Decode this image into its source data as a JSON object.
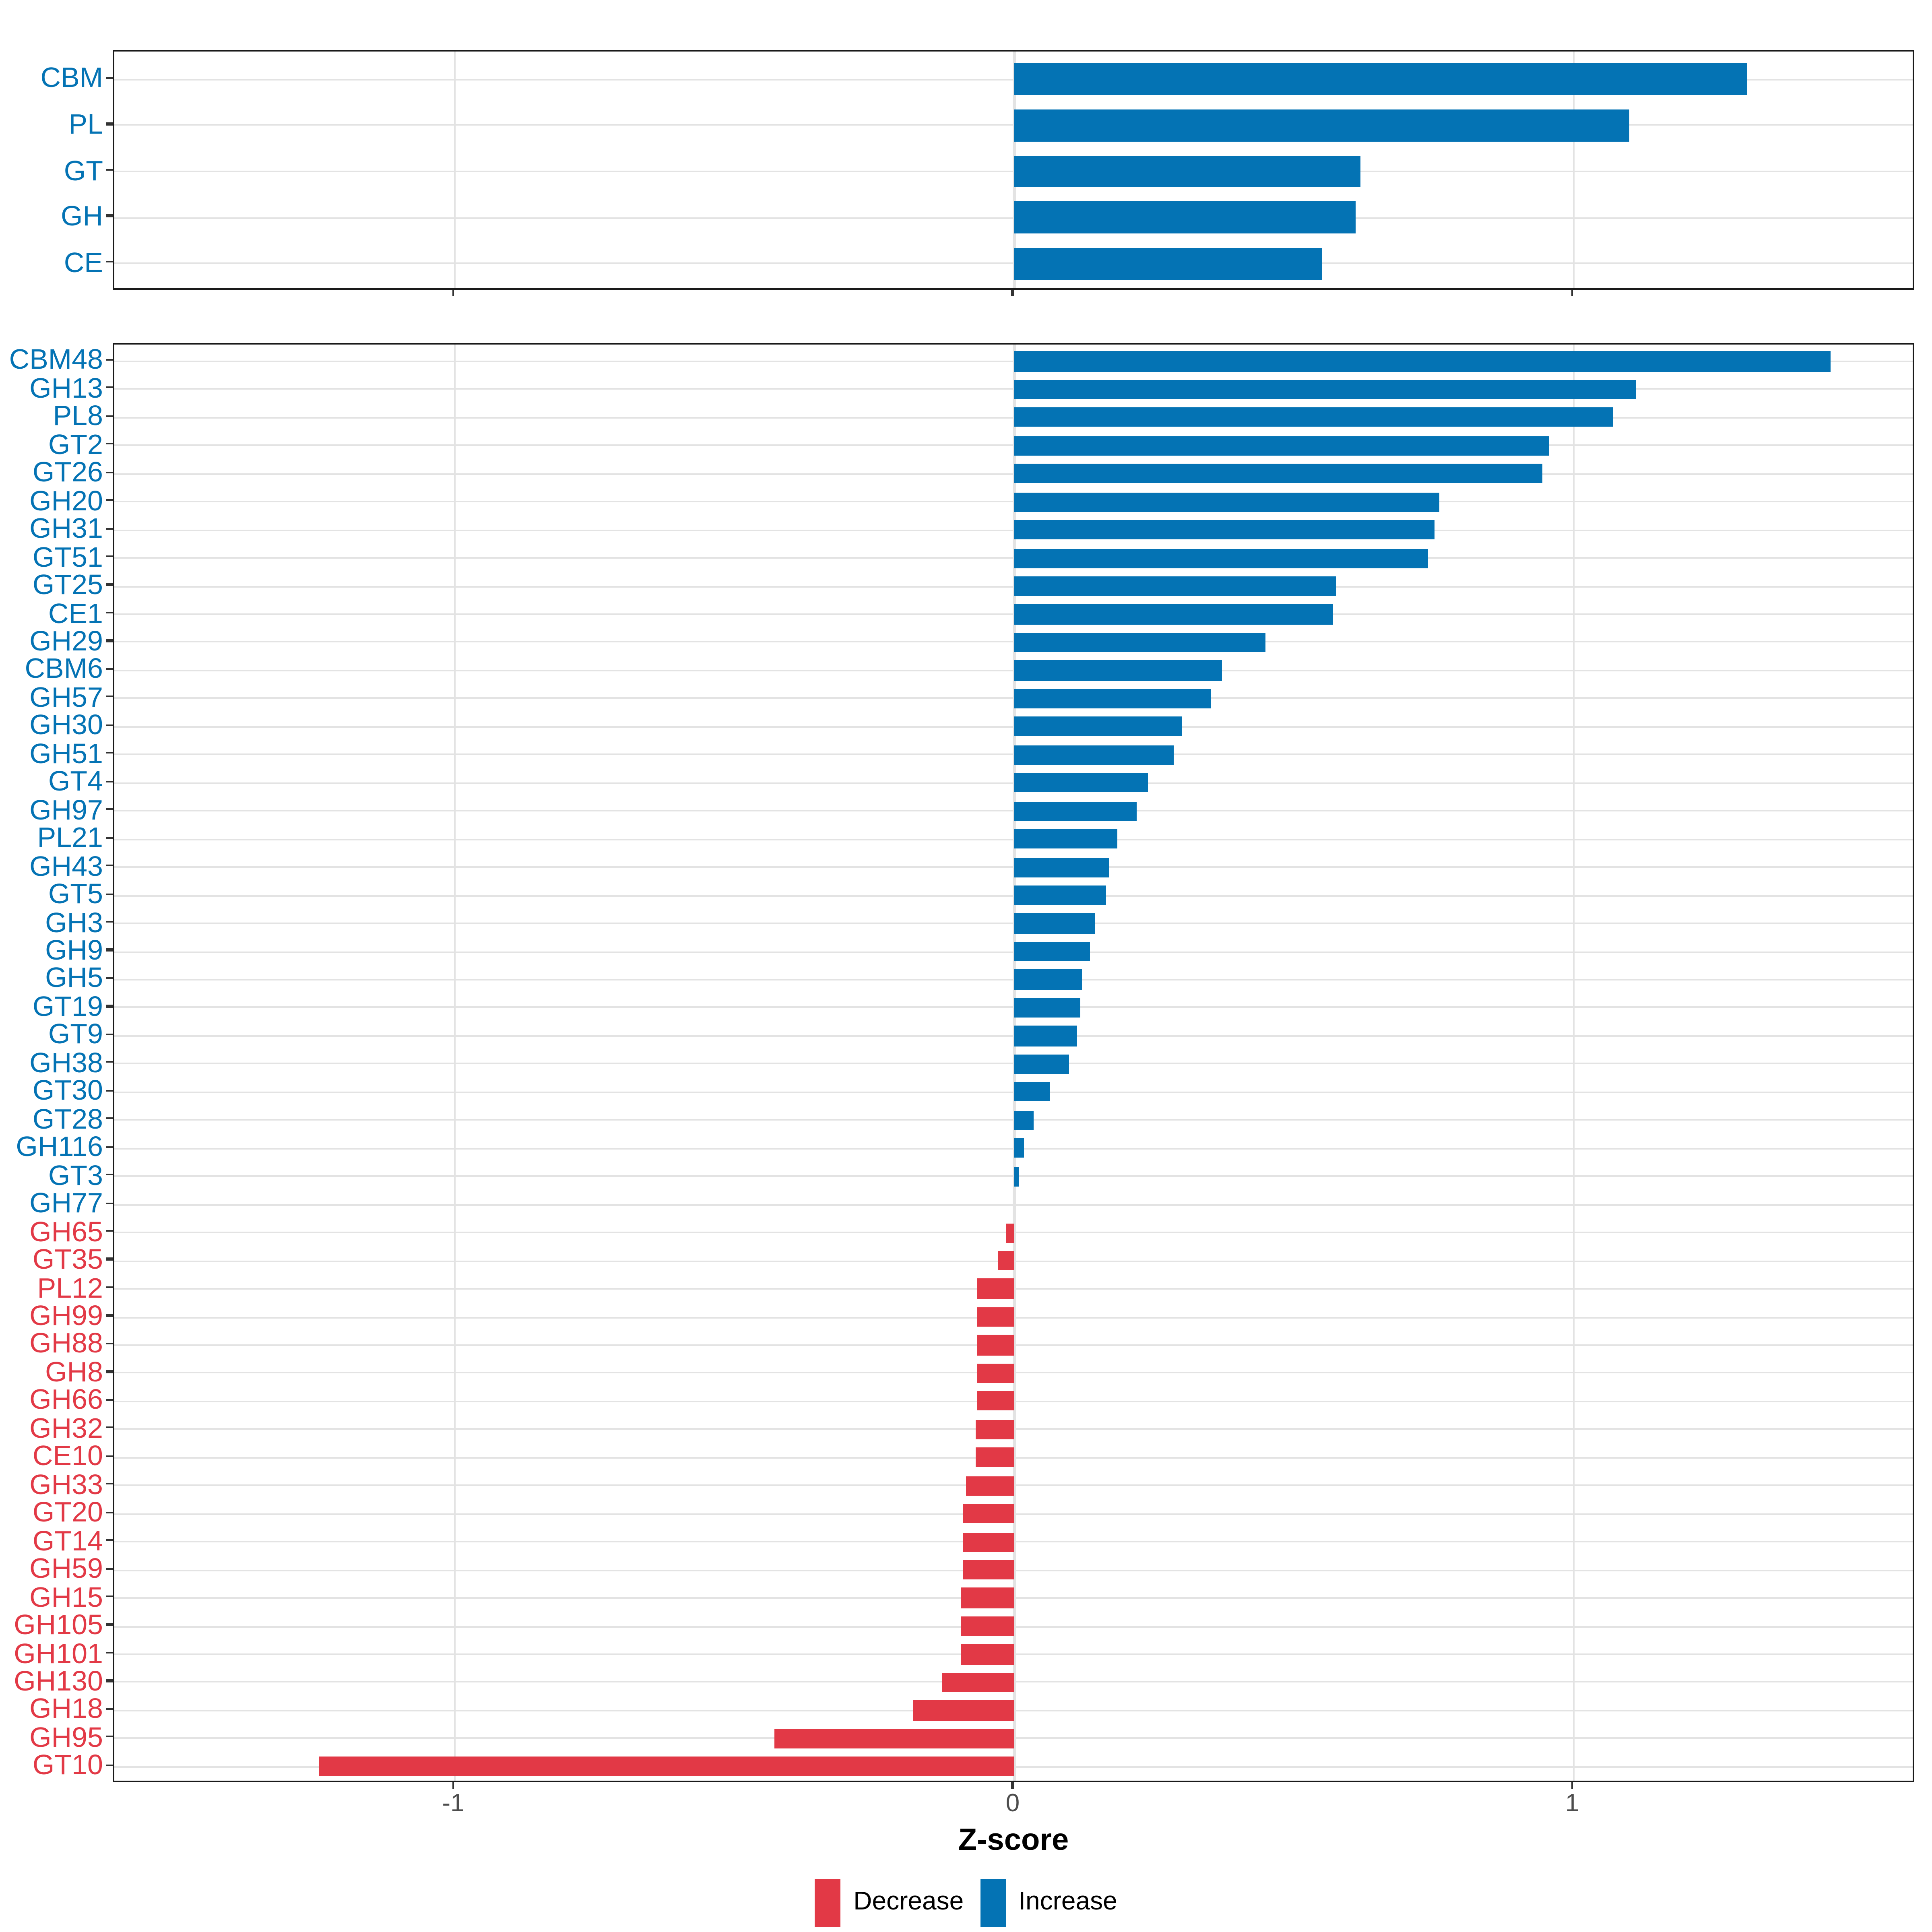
{
  "axis": {
    "xlabel": "Z-score",
    "ticks": [
      -1,
      0,
      1
    ],
    "tick_labels": [
      "-1",
      "0",
      "1"
    ]
  },
  "legend": {
    "items": [
      {
        "label": "Decrease",
        "color": "#e23946"
      },
      {
        "label": "Increase",
        "color": "#0473b4"
      }
    ]
  },
  "colors": {
    "increase": "#0473b4",
    "decrease": "#e23946",
    "grid": "#e3e3e3",
    "axis_text": "#4d4d4d",
    "axis_line": "#1a1a1a"
  },
  "chart_data": [
    {
      "type": "bar",
      "orientation": "horizontal",
      "panel": "cazyme-class-level",
      "title": "",
      "xlabel": "Z-score",
      "xlim": [
        -1.61,
        1.61
      ],
      "xticks": [
        -1,
        0,
        1
      ],
      "grid": true,
      "legend_position": "bottom",
      "categories": [
        "CBM",
        "PL",
        "GT",
        "GH",
        "CE"
      ],
      "values": [
        1.31,
        1.1,
        0.62,
        0.61,
        0.55
      ]
    },
    {
      "type": "bar",
      "orientation": "horizontal",
      "panel": "cazyme-family-level",
      "title": "",
      "xlabel": "Z-score",
      "xlim": [
        -1.61,
        1.61
      ],
      "xticks": [
        -1,
        0,
        1
      ],
      "grid": true,
      "legend_position": "bottom",
      "categories": [
        "CBM48",
        "GH13",
        "PL8",
        "GT2",
        "GT26",
        "GH20",
        "GH31",
        "GT51",
        "GT25",
        "CE1",
        "GH29",
        "CBM6",
        "GH57",
        "GH30",
        "GH51",
        "GT4",
        "GH97",
        "PL21",
        "GH43",
        "GT5",
        "GH3",
        "GH9",
        "GH5",
        "GT19",
        "GT9",
        "GH38",
        "GT30",
        "GT28",
        "GH116",
        "GT3",
        "GH77",
        "GH65",
        "GT35",
        "PL12",
        "GH99",
        "GH88",
        "GH8",
        "GH66",
        "GH32",
        "CE10",
        "GH33",
        "GT20",
        "GT14",
        "GH59",
        "GH15",
        "GH105",
        "GH101",
        "GH130",
        "GH18",
        "GH95",
        "GT10"
      ],
      "values": [
        1.46,
        1.11,
        1.07,
        0.955,
        0.945,
        0.76,
        0.75,
        0.74,
        0.575,
        0.57,
        0.45,
        0.37,
        0.35,
        0.3,
        0.285,
        0.24,
        0.22,
        0.185,
        0.17,
        0.163,
        0.145,
        0.135,
        0.122,
        0.118,
        0.112,
        0.098,
        0.063,
        0.035,
        0.016,
        0.009,
        0.0,
        -0.015,
        -0.028,
        -0.066,
        -0.066,
        -0.067,
        -0.067,
        -0.067,
        -0.068,
        -0.068,
        -0.086,
        -0.092,
        -0.093,
        -0.093,
        -0.094,
        -0.095,
        -0.095,
        -0.129,
        -0.181,
        -0.43,
        -1.243
      ]
    }
  ]
}
